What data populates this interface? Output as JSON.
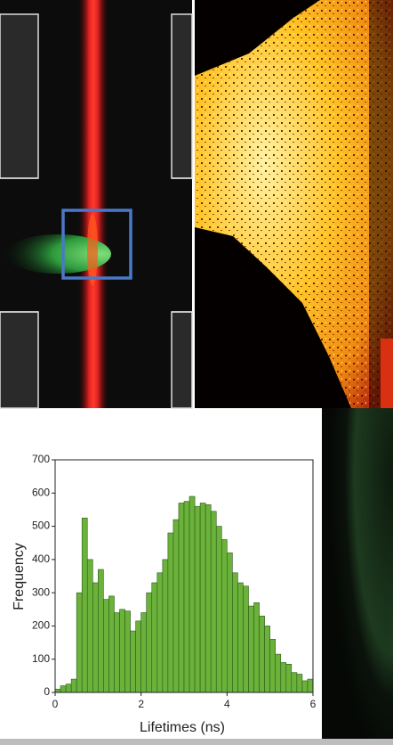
{
  "chart_data": {
    "type": "histogram",
    "x_label": "Lifetimes (ns)",
    "y_label": "Frequency",
    "bins": [
      0,
      0.125,
      0.25,
      0.375,
      0.5,
      0.625,
      0.75,
      0.875,
      1,
      1.125,
      1.25,
      1.375,
      1.5,
      1.625,
      1.75,
      1.875,
      2,
      2.125,
      2.25,
      2.375,
      2.5,
      2.625,
      2.75,
      2.875,
      3,
      3.125,
      3.25,
      3.375,
      3.5,
      3.625,
      3.75,
      3.875,
      4,
      4.125,
      4.25,
      4.375,
      4.5,
      4.625,
      4.75,
      4.875,
      5,
      5.125,
      5.25,
      5.375,
      5.5,
      5.625,
      5.75,
      5.875,
      6
    ],
    "values": [
      10,
      20,
      25,
      40,
      300,
      525,
      400,
      330,
      370,
      280,
      290,
      240,
      250,
      245,
      185,
      215,
      240,
      300,
      330,
      360,
      400,
      480,
      520,
      570,
      575,
      590,
      560,
      570,
      565,
      545,
      500,
      460,
      420,
      360,
      330,
      320,
      260,
      270,
      230,
      200,
      160,
      115,
      90,
      85,
      60,
      55,
      35,
      40
    ],
    "color": "#6ab23a",
    "xlim": [
      0,
      6
    ],
    "xticks": [
      0,
      2,
      4,
      6
    ],
    "ylim": [
      0,
      700
    ],
    "yticks": [
      0,
      100,
      200,
      300,
      400,
      500,
      600,
      700
    ]
  }
}
